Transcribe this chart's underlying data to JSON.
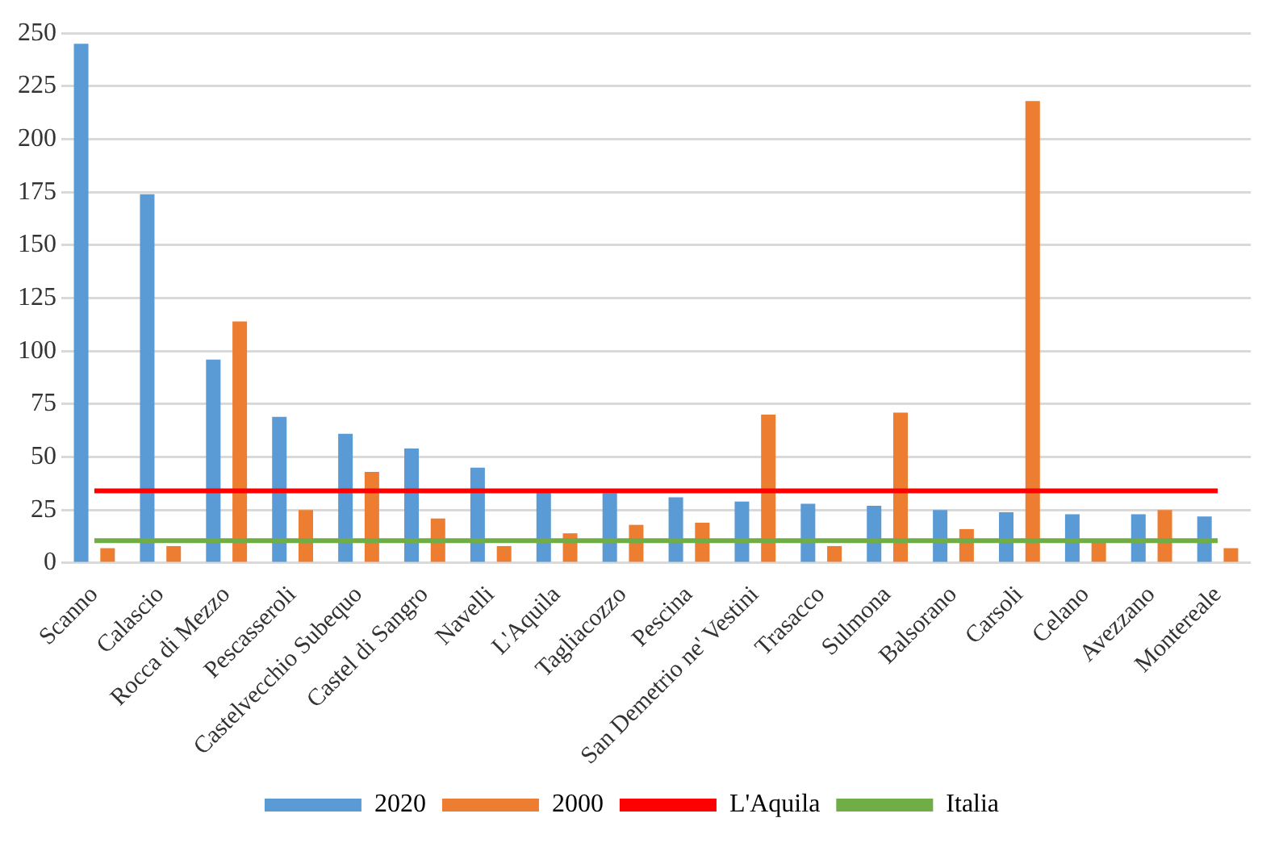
{
  "chart_data": {
    "type": "bar",
    "categories": [
      "Scanno",
      "Calascio",
      "Rocca di Mezzo",
      "Pescasseroli",
      "Castelvecchio Subequo",
      "Castel di Sangro",
      "Navelli",
      "L'Aquila",
      "Tagliacozzo",
      "Pescina",
      "San Demetrio ne' Vestini",
      "Trasacco",
      "Sulmona",
      "Balsorano",
      "Carsoli",
      "Celano",
      "Avezzano",
      "Montereale"
    ],
    "series": [
      {
        "name": "2020",
        "color": "#5b9bd5",
        "values": [
          245,
          174,
          96,
          69,
          61,
          54,
          45,
          34,
          33,
          31,
          29,
          28,
          27,
          25,
          24,
          23,
          23,
          22
        ]
      },
      {
        "name": "2000",
        "color": "#ed7d31",
        "values": [
          7,
          8,
          114,
          25,
          43,
          21,
          8,
          14,
          18,
          19,
          70,
          8,
          71,
          16,
          218,
          10,
          25,
          7
        ]
      },
      {
        "name": "L'Aquila",
        "type": "line",
        "color": "#ff0000",
        "values": [
          34,
          34,
          34,
          34,
          34,
          34,
          34,
          34,
          34,
          34,
          34,
          34,
          34,
          34,
          34,
          34,
          34,
          34
        ]
      },
      {
        "name": "Italia",
        "type": "line",
        "color": "#70ad47",
        "values": [
          10.5,
          10.5,
          10.5,
          10.5,
          10.5,
          10.5,
          10.5,
          10.5,
          10.5,
          10.5,
          10.5,
          10.5,
          10.5,
          10.5,
          10.5,
          10.5,
          10.5,
          10.5
        ]
      }
    ],
    "ylim": [
      0,
      250
    ],
    "yticks": [
      0,
      25,
      50,
      75,
      100,
      125,
      150,
      175,
      200,
      225,
      250
    ],
    "grid": "y",
    "legend": "bottom",
    "marker": "none"
  }
}
